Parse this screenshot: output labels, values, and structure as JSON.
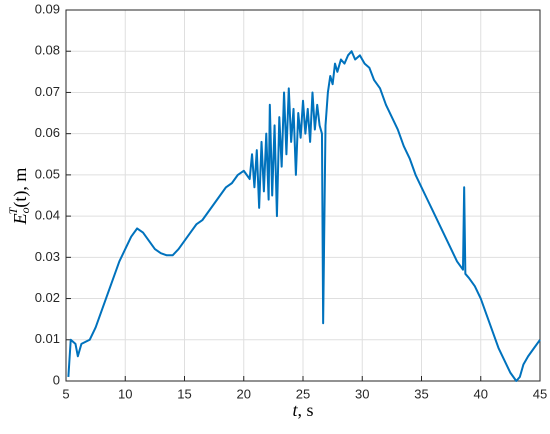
{
  "chart_data": {
    "type": "line",
    "xlabel": {
      "var": "t",
      "rest": ", s"
    },
    "ylabel": {
      "base": "E",
      "sub": "o",
      "sup": "T",
      "arg": "(t)",
      "rest": ", m"
    },
    "x": [
      5.2,
      5.4,
      5.8,
      6.0,
      6.3,
      7,
      7.5,
      8,
      8.5,
      9,
      9.5,
      10,
      10.5,
      11,
      11.5,
      12,
      12.5,
      13,
      13.5,
      14,
      14.5,
      15,
      15.5,
      16,
      16.5,
      17,
      17.5,
      18,
      18.5,
      19,
      19.5,
      20,
      20.5,
      20.7,
      20.9,
      21.1,
      21.3,
      21.5,
      21.7,
      21.9,
      22.1,
      22.2,
      22.4,
      22.6,
      22.8,
      23.0,
      23.2,
      23.4,
      23.6,
      23.8,
      24.0,
      24.2,
      24.4,
      24.6,
      24.8,
      25.0,
      25.2,
      25.4,
      25.6,
      25.8,
      26.0,
      26.2,
      26.4,
      26.6,
      26.7,
      26.9,
      27.1,
      27.3,
      27.5,
      27.7,
      27.9,
      28.2,
      28.5,
      28.8,
      29.1,
      29.4,
      29.8,
      30.2,
      30.6,
      31,
      31.5,
      32,
      32.5,
      33,
      33.5,
      34,
      34.5,
      35,
      35.5,
      36,
      36.5,
      37,
      37.5,
      38,
      38.5,
      38.6,
      38.7,
      39,
      39.5,
      40,
      40.5,
      41,
      41.5,
      42,
      42.5,
      43,
      43.3,
      43.6,
      44,
      44.5,
      45
    ],
    "series": [
      {
        "color": "#0072bd",
        "values": [
          0.001,
          0.01,
          0.009,
          0.006,
          0.009,
          0.01,
          0.013,
          0.017,
          0.021,
          0.025,
          0.029,
          0.032,
          0.035,
          0.037,
          0.036,
          0.034,
          0.032,
          0.031,
          0.0305,
          0.0305,
          0.032,
          0.034,
          0.036,
          0.038,
          0.039,
          0.041,
          0.043,
          0.045,
          0.047,
          0.048,
          0.05,
          0.051,
          0.049,
          0.055,
          0.047,
          0.056,
          0.042,
          0.058,
          0.046,
          0.06,
          0.044,
          0.067,
          0.045,
          0.062,
          0.04,
          0.064,
          0.052,
          0.07,
          0.055,
          0.071,
          0.058,
          0.066,
          0.05,
          0.065,
          0.059,
          0.068,
          0.06,
          0.066,
          0.058,
          0.07,
          0.061,
          0.067,
          0.062,
          0.06,
          0.014,
          0.062,
          0.07,
          0.074,
          0.072,
          0.077,
          0.075,
          0.078,
          0.077,
          0.079,
          0.08,
          0.078,
          0.079,
          0.077,
          0.076,
          0.073,
          0.071,
          0.067,
          0.064,
          0.061,
          0.057,
          0.054,
          0.05,
          0.047,
          0.044,
          0.041,
          0.038,
          0.035,
          0.032,
          0.029,
          0.027,
          0.047,
          0.026,
          0.025,
          0.023,
          0.02,
          0.016,
          0.012,
          0.008,
          0.005,
          0.002,
          0.0,
          0.001,
          0.004,
          0.006,
          0.008,
          0.01
        ]
      }
    ],
    "xlim": [
      5,
      45
    ],
    "xticks": [
      5,
      10,
      15,
      20,
      25,
      30,
      35,
      40,
      45
    ],
    "ylim": [
      0,
      0.09
    ],
    "yticks": [
      0,
      0.01,
      0.02,
      0.03,
      0.04,
      0.05,
      0.06,
      0.07,
      0.08,
      0.09
    ],
    "grid": true
  }
}
